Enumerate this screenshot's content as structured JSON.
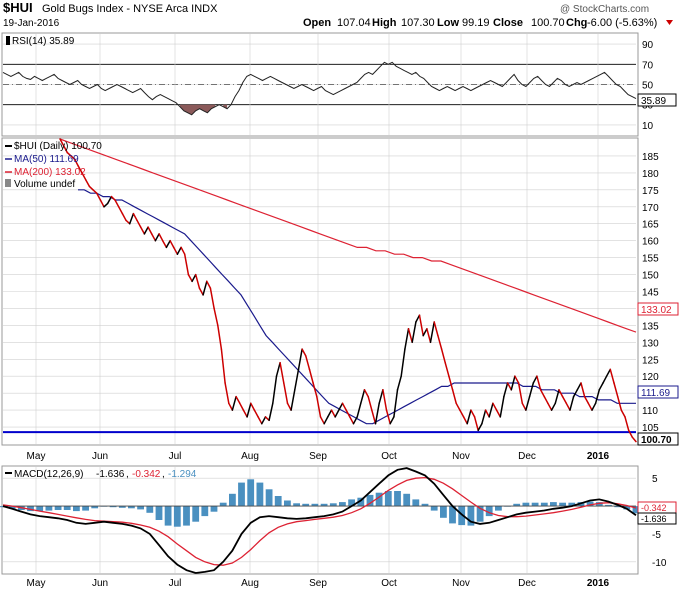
{
  "header": {
    "symbol": "$HUI",
    "name": "Gold Bugs Index - NYSE Arca INDX",
    "date": "19-Jan-2016",
    "open_label": "Open",
    "open": "107.04",
    "high_label": "High",
    "high": "107.30",
    "low_label": "Low",
    "low": "99.19",
    "close_label": "Close",
    "close": "100.70",
    "chg_label": "Chg",
    "chg": "-6.00 (-5.63%)",
    "watermark": "@ StockCharts.com"
  },
  "colors": {
    "price": "#000000",
    "price_down": "#cc0000",
    "ma50": "#1a1a8c",
    "ma200": "#dd2233",
    "support": "#0000cc",
    "rsi_fill": "#8b5a5a",
    "macd_hist": "#4a90c0",
    "grid": "#d0d0d0"
  },
  "chart_data": [
    {
      "type": "line",
      "panel": "rsi",
      "legend": "RSI(14) 35.89",
      "last_value": "35.89",
      "y_ticks": [
        10,
        30,
        50,
        70,
        90
      ],
      "ylim": [
        0,
        100
      ],
      "guides": [
        30,
        50,
        70
      ],
      "values": [
        62,
        60,
        58,
        60,
        62,
        58,
        56,
        55,
        58,
        56,
        54,
        56,
        58,
        60,
        56,
        54,
        52,
        50,
        52,
        54,
        50,
        48,
        46,
        48,
        50,
        46,
        44,
        46,
        48,
        50,
        48,
        46,
        44,
        42,
        44,
        46,
        42,
        38,
        35,
        38,
        40,
        38,
        36,
        34,
        32,
        28,
        24,
        22,
        20,
        24,
        26,
        24,
        22,
        26,
        28,
        30,
        28,
        26,
        30,
        38,
        44,
        52,
        58,
        60,
        58,
        56,
        54,
        56,
        58,
        56,
        54,
        52,
        50,
        48,
        46,
        48,
        50,
        48,
        46,
        44,
        46,
        48,
        44,
        42,
        40,
        42,
        44,
        46,
        48,
        50,
        52,
        56,
        60,
        62,
        60,
        64,
        68,
        72,
        70,
        72,
        68,
        66,
        64,
        62,
        60,
        62,
        58,
        56,
        52,
        48,
        46,
        44,
        46,
        48,
        46,
        44,
        46,
        48,
        46,
        44,
        46,
        48,
        50,
        52,
        54,
        52,
        50,
        48,
        52,
        56,
        60,
        54,
        50,
        48,
        52,
        56,
        58,
        54,
        50,
        48,
        52,
        56,
        54,
        50,
        48,
        50,
        52,
        50,
        52,
        54,
        56,
        58,
        60,
        62,
        58,
        54,
        50,
        48,
        44,
        40,
        38,
        36
      ]
    },
    {
      "type": "line",
      "panel": "price",
      "x_ticks": [
        "May",
        "Jun",
        "Jul",
        "Aug",
        "Sep",
        "Oct",
        "Nov",
        "Dec",
        "2016"
      ],
      "y_ticks": [
        105,
        110,
        115,
        120,
        125,
        130,
        135,
        140,
        145,
        150,
        155,
        160,
        165,
        170,
        175,
        180,
        185
      ],
      "ylim": [
        100,
        190
      ],
      "series": [
        {
          "name": "$HUI (Daily) 100.70",
          "last_value": "100.70",
          "values": [
            190,
            188,
            186,
            185,
            184,
            182,
            180,
            178,
            176,
            175,
            174,
            172,
            170,
            171,
            173,
            172,
            170,
            168,
            166,
            165,
            168,
            166,
            164,
            162,
            164,
            162,
            160,
            162,
            160,
            158,
            160,
            158,
            156,
            158,
            156,
            150,
            148,
            150,
            146,
            144,
            148,
            146,
            140,
            135,
            128,
            118,
            112,
            110,
            114,
            112,
            110,
            108,
            112,
            110,
            108,
            106,
            108,
            107,
            112,
            120,
            124,
            118,
            112,
            110,
            116,
            122,
            128,
            126,
            122,
            118,
            114,
            108,
            106,
            108,
            110,
            108,
            110,
            112,
            110,
            108,
            106,
            108,
            112,
            116,
            114,
            110,
            106,
            112,
            116,
            110,
            106,
            108,
            116,
            120,
            128,
            134,
            130,
            136,
            138,
            132,
            134,
            130,
            136,
            132,
            128,
            124,
            120,
            116,
            112,
            110,
            108,
            106,
            110,
            108,
            104,
            106,
            110,
            108,
            112,
            110,
            108,
            114,
            118,
            116,
            120,
            118,
            112,
            110,
            114,
            118,
            120,
            116,
            114,
            112,
            110,
            112,
            116,
            114,
            112,
            110,
            114,
            116,
            118,
            114,
            112,
            110,
            112,
            116,
            118,
            120,
            122,
            118,
            114,
            110,
            108,
            104,
            102,
            100.7
          ]
        },
        {
          "name": "MA(50) 111.69",
          "last_value": "111.69",
          "values": [
            175,
            175,
            174,
            174,
            173,
            173,
            172,
            172,
            171,
            170,
            169,
            168,
            167,
            166,
            165,
            164,
            163,
            162,
            160,
            158,
            156,
            154,
            152,
            150,
            148,
            146,
            144,
            141,
            138,
            135,
            132,
            130,
            128,
            126,
            124,
            122,
            120,
            118,
            116,
            114,
            112,
            111,
            110,
            109,
            108,
            107,
            106,
            106,
            107,
            108,
            109,
            110,
            111,
            112,
            113,
            114,
            115,
            116,
            117,
            117,
            118,
            118,
            118,
            118,
            118,
            118,
            118,
            118,
            118,
            118,
            118,
            117,
            117,
            117,
            116,
            116,
            116,
            115,
            115,
            115,
            114,
            114,
            114,
            113,
            113,
            113,
            112,
            112,
            112,
            112
          ]
        },
        {
          "name": "MA(200) 133.02",
          "last_value": "133.02",
          "values": [
            190,
            189,
            188,
            187,
            186,
            185,
            184,
            183,
            182,
            181,
            180,
            179,
            178,
            177,
            176,
            175,
            174,
            173,
            172,
            171,
            170,
            169,
            168,
            167,
            166,
            165,
            164,
            163,
            162,
            161,
            160,
            159,
            158,
            158,
            157,
            157,
            156,
            156,
            155,
            155,
            154,
            154,
            153,
            152,
            151,
            150,
            149,
            148,
            147,
            146,
            145,
            144,
            143,
            142,
            141,
            140,
            139,
            138,
            137,
            136,
            135,
            134,
            133.02
          ]
        }
      ],
      "legend_extra": "Volume undef",
      "support_level": 103.5
    },
    {
      "type": "line",
      "panel": "macd",
      "legend": "MACD(12,26,9)",
      "values_text": [
        "-1.636",
        "-0.342",
        "-1.294"
      ],
      "last_values": [
        "-0.342",
        "-1.636"
      ],
      "y_ticks": [
        -10,
        -5,
        0,
        5
      ],
      "ylim": [
        -12,
        7
      ],
      "x_ticks": [
        "May",
        "Jun",
        "Jul",
        "Aug",
        "Sep",
        "Oct",
        "Nov",
        "Dec",
        "2016"
      ],
      "series": [
        {
          "name": "MACD",
          "values": [
            0,
            -0.5,
            -1,
            -1.5,
            -1.8,
            -2,
            -2.2,
            -2.5,
            -3,
            -3.2,
            -3,
            -2.8,
            -3,
            -3.2,
            -3.5,
            -4,
            -5,
            -7,
            -9,
            -10.5,
            -11.5,
            -12,
            -11.8,
            -11.5,
            -10,
            -8,
            -5,
            -3,
            -2,
            -1.8,
            -2,
            -2.2,
            -2.3,
            -2.2,
            -2,
            -1.8,
            -1.5,
            -1,
            0,
            1,
            2.5,
            4,
            5.5,
            6.5,
            6.8,
            6.2,
            5.5,
            4,
            2,
            0,
            -1.5,
            -2.8,
            -3.2,
            -3,
            -2.5,
            -2,
            -1.5,
            -1.2,
            -1,
            -0.8,
            -0.5,
            -0.3,
            0,
            0.5,
            1,
            1.2,
            0.8,
            0.2,
            -0.5,
            -1.636
          ]
        },
        {
          "name": "Signal",
          "values": [
            0.2,
            0,
            -0.3,
            -0.6,
            -0.9,
            -1.2,
            -1.5,
            -1.8,
            -2.1,
            -2.4,
            -2.6,
            -2.7,
            -2.8,
            -2.9,
            -3.1,
            -3.4,
            -3.8,
            -4.5,
            -5.5,
            -6.8,
            -8,
            -9.2,
            -10,
            -10.5,
            -10.6,
            -10.2,
            -9.2,
            -7.8,
            -6.2,
            -4.8,
            -3.8,
            -3.2,
            -2.8,
            -2.6,
            -2.4,
            -2.2,
            -2,
            -1.7,
            -1.2,
            -0.5,
            0.5,
            1.6,
            2.8,
            3.8,
            4.6,
            5,
            5.1,
            4.8,
            4.1,
            3.1,
            1.9,
            0.7,
            -0.4,
            -1.2,
            -1.7,
            -1.9,
            -1.9,
            -1.8,
            -1.6,
            -1.4,
            -1.2,
            -0.9,
            -0.6,
            -0.2,
            0.2,
            0.5,
            0.6,
            0.4,
            0.1,
            -0.342
          ]
        }
      ]
    }
  ]
}
